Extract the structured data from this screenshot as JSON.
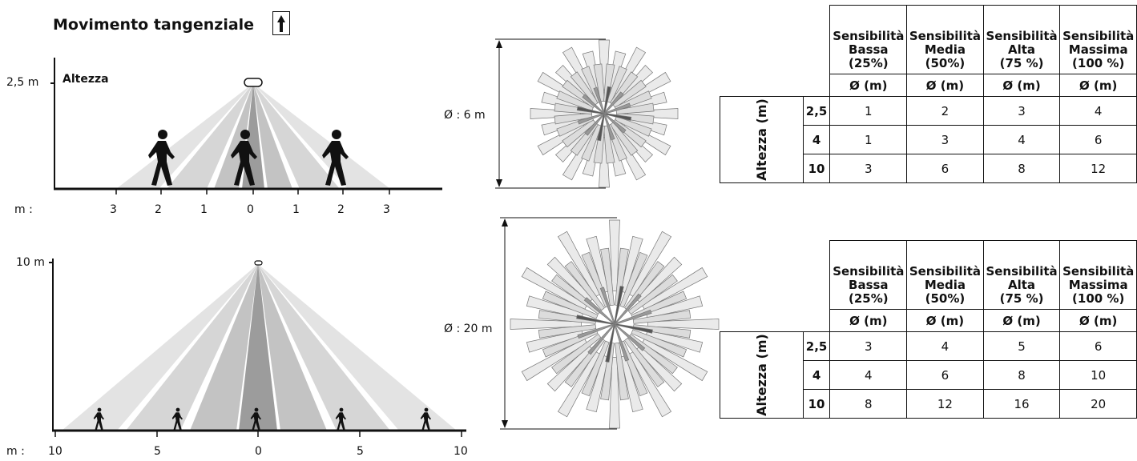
{
  "title": "Movimento tangenziale",
  "top_diagram": {
    "height_label": "2,5 m",
    "height_caption": "Altezza",
    "axis_prefix": "m :",
    "ticks": [
      "3",
      "2",
      "1",
      "0",
      "1",
      "2",
      "3"
    ]
  },
  "bottom_diagram": {
    "height_label": "10 m",
    "axis_prefix": "m :",
    "ticks": [
      "10",
      "5",
      "0",
      "5",
      "10"
    ]
  },
  "patterns": {
    "small_label": "Ø : 6 m",
    "large_label": "Ø : 20 m"
  },
  "table_header": {
    "columns": [
      {
        "line1": "Sensibilità",
        "line2": "Bassa",
        "line3": "(25%)"
      },
      {
        "line1": "Sensibilità",
        "line2": "Media",
        "line3": "(50%)"
      },
      {
        "line1": "Sensibilità",
        "line2": "Alta",
        "line3": "(75 %)"
      },
      {
        "line1": "Sensibilità",
        "line2": "Massima",
        "line3": "(100 %)"
      }
    ],
    "unit": "Ø (m)",
    "row_axis_label": "Altezza (m)"
  },
  "table1": {
    "rows": [
      {
        "h": "2,5",
        "v": [
          "1",
          "2",
          "3",
          "4"
        ]
      },
      {
        "h": "4",
        "v": [
          "1",
          "3",
          "4",
          "6"
        ]
      },
      {
        "h": "10",
        "v": [
          "3",
          "6",
          "8",
          "12"
        ]
      }
    ]
  },
  "table2": {
    "rows": [
      {
        "h": "2,5",
        "v": [
          "3",
          "4",
          "5",
          "6"
        ]
      },
      {
        "h": "4",
        "v": [
          "4",
          "6",
          "8",
          "10"
        ]
      },
      {
        "h": "10",
        "v": [
          "8",
          "12",
          "16",
          "20"
        ]
      }
    ]
  }
}
